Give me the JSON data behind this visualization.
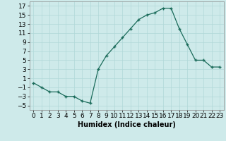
{
  "x": [
    0,
    1,
    2,
    3,
    4,
    5,
    6,
    7,
    8,
    9,
    10,
    11,
    12,
    13,
    14,
    15,
    16,
    17,
    18,
    19,
    20,
    21,
    22,
    23
  ],
  "y": [
    0,
    -1,
    -2,
    -2,
    -3,
    -3,
    -4,
    -4.5,
    3,
    6,
    8,
    10,
    12,
    14,
    15,
    15.5,
    16.5,
    16.5,
    12,
    8.5,
    5,
    5,
    3.5,
    3.5
  ],
  "xlabel": "Humidex (Indice chaleur)",
  "ylim": [
    -6,
    18
  ],
  "xlim": [
    -0.5,
    23.5
  ],
  "yticks": [
    -5,
    -3,
    -1,
    1,
    3,
    5,
    7,
    9,
    11,
    13,
    15,
    17
  ],
  "xticks": [
    0,
    1,
    2,
    3,
    4,
    5,
    6,
    7,
    8,
    9,
    10,
    11,
    12,
    13,
    14,
    15,
    16,
    17,
    18,
    19,
    20,
    21,
    22,
    23
  ],
  "line_color": "#1a6b5a",
  "marker_color": "#1a6b5a",
  "bg_color": "#ceeaea",
  "grid_color": "#b0d8d8",
  "xlabel_fontsize": 7,
  "tick_fontsize": 6.5
}
